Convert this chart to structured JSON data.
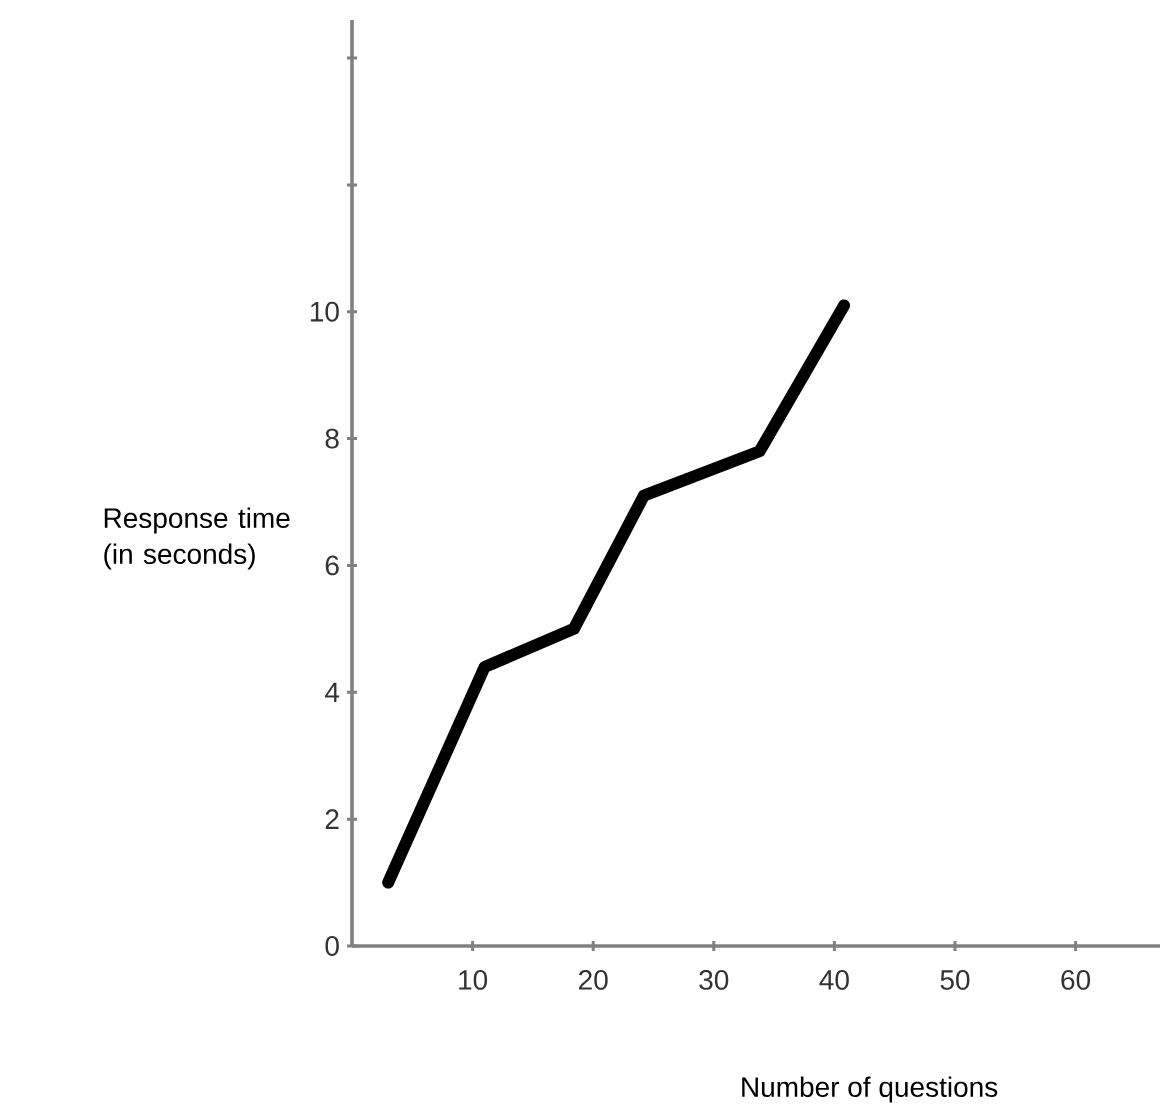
{
  "chart_data": {
    "type": "line",
    "xlabel": "Number of questions",
    "ylabel": "Response time (in seconds)",
    "x": [
      3,
      11,
      18.4,
      24.2,
      33.8,
      40.8
    ],
    "values": [
      1,
      4.4,
      5.0,
      7.1,
      7.8,
      10.1
    ],
    "color": "#000000",
    "xlim": [
      0,
      67
    ],
    "ylim": [
      0,
      14.6
    ],
    "xticks": [
      10,
      20,
      30,
      40,
      50,
      60
    ],
    "yticks": [
      0,
      2,
      4,
      6,
      8,
      10,
      {
        "value": 12,
        "label": null
      },
      {
        "value": 14,
        "label": null
      }
    ],
    "grid": false,
    "marker": "none",
    "line_style": "solid"
  }
}
